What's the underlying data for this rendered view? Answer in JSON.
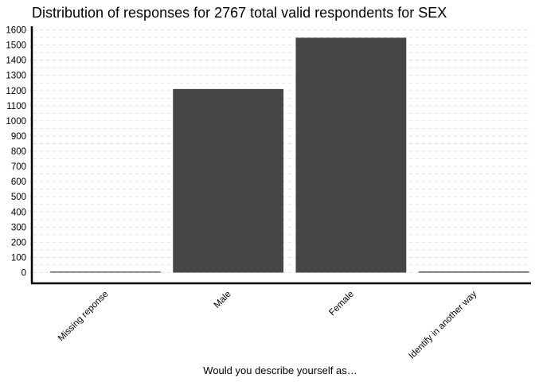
{
  "chart_data": {
    "type": "bar",
    "title": "Distribution of responses for 2767 total valid respondents for SEX",
    "xlabel": "Would you describe yourself as…",
    "ylabel": "",
    "categories": [
      "Missing reponse",
      "Male",
      "Female",
      "Identify in another way"
    ],
    "values": [
      2,
      1210,
      1548,
      7
    ],
    "ylim": [
      0,
      1600
    ],
    "yticks": [
      0,
      100,
      200,
      300,
      400,
      500,
      600,
      700,
      800,
      900,
      1000,
      1100,
      1200,
      1300,
      1400,
      1500,
      1600
    ],
    "grid": true,
    "legend": "none",
    "bar_color": "#464646"
  }
}
